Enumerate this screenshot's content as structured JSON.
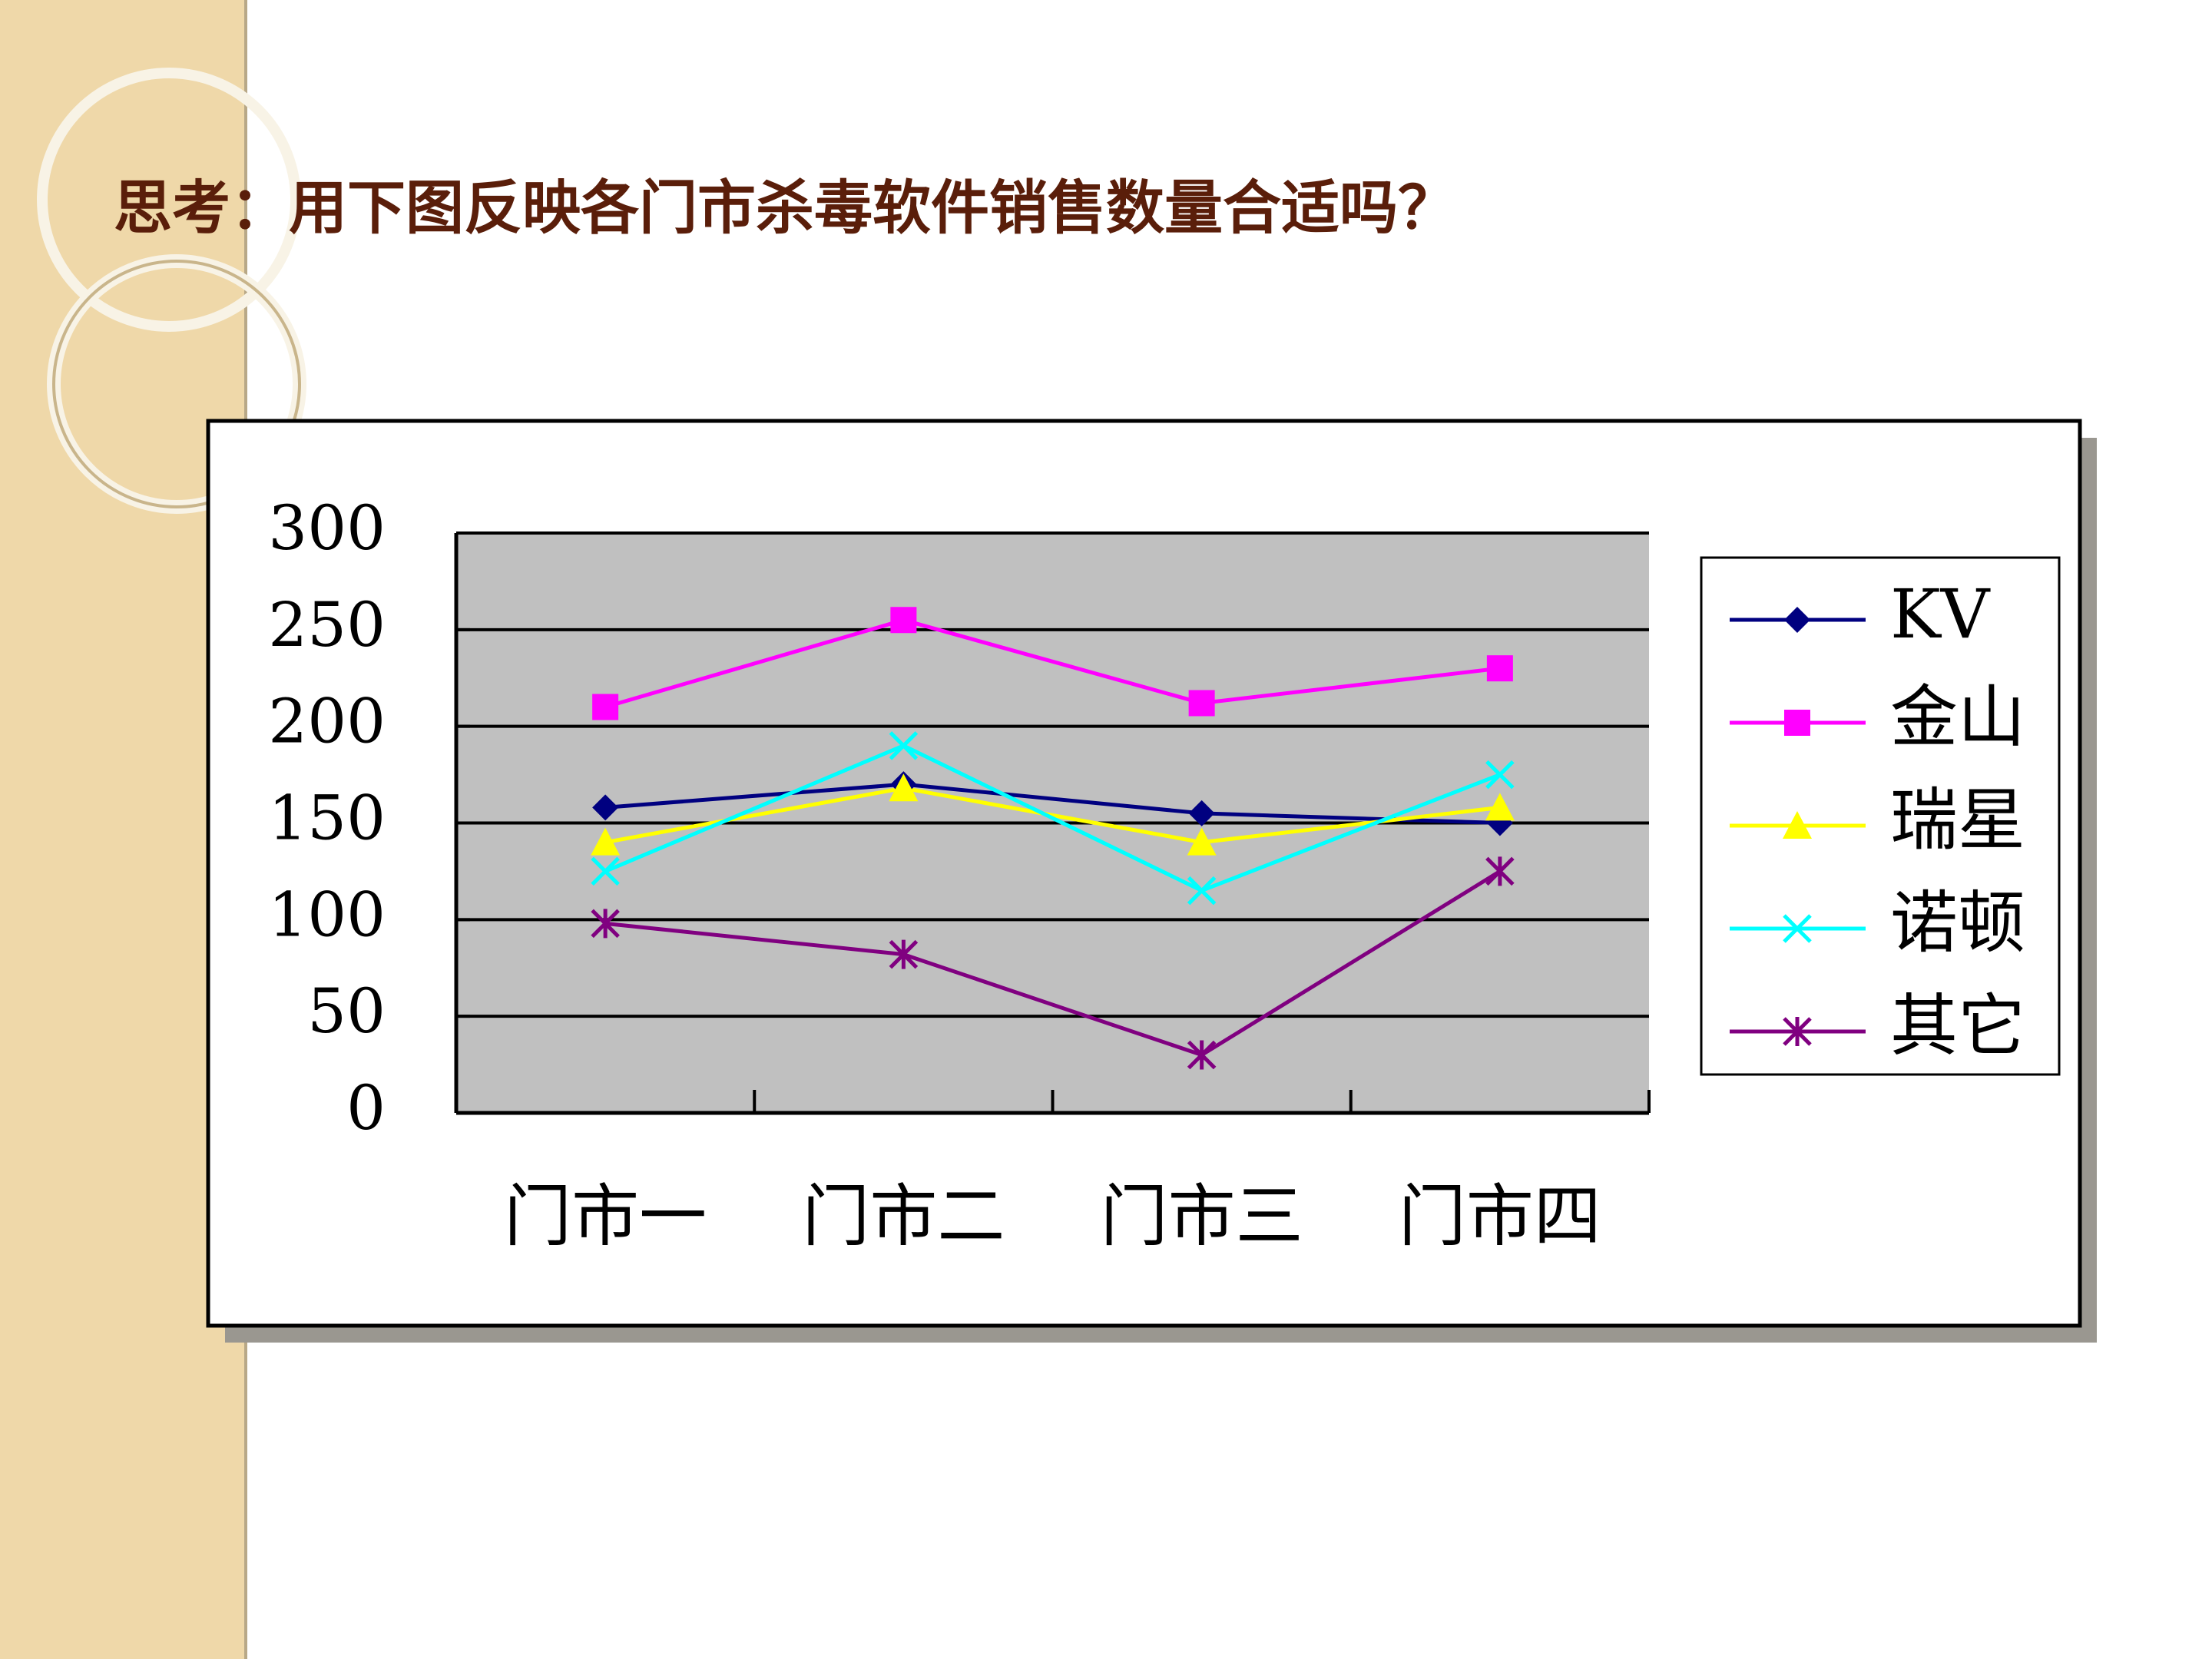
{
  "chart_data": {
    "type": "line",
    "title": "思考：用下图反映各门市杀毒软件销售数量合适吗？",
    "categories": [
      "门市一",
      "门市二",
      "门市三",
      "门市四"
    ],
    "series": [
      {
        "name": "KV",
        "color": "#000080",
        "marker": "diamond",
        "values": [
          158,
          170,
          155,
          150
        ]
      },
      {
        "name": "金山",
        "color": "#ff00ff",
        "marker": "square",
        "values": [
          210,
          255,
          212,
          230
        ]
      },
      {
        "name": "瑞星",
        "color": "#ffff00",
        "marker": "triangle",
        "values": [
          140,
          168,
          140,
          158
        ]
      },
      {
        "name": "诺顿",
        "color": "#00ffff",
        "marker": "x",
        "values": [
          125,
          190,
          115,
          175
        ]
      },
      {
        "name": "其它",
        "color": "#800080",
        "marker": "asterisk",
        "values": [
          98,
          82,
          30,
          125
        ]
      }
    ],
    "ylim": [
      0,
      300
    ],
    "yticks": [
      0,
      50,
      100,
      150,
      200,
      250,
      300
    ],
    "grid": true,
    "legend": "right"
  }
}
